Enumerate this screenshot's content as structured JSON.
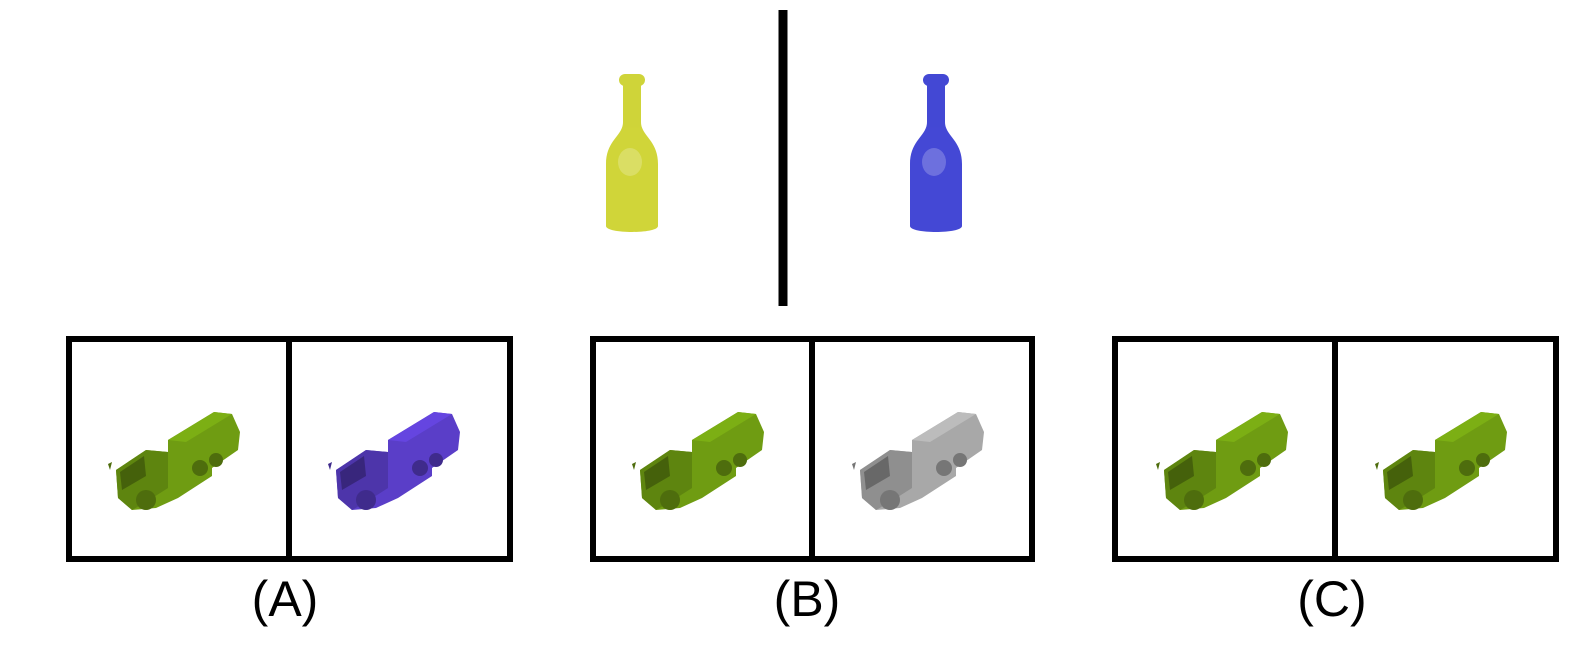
{
  "prompt": {
    "left_item": {
      "object": "bottle",
      "color": "#c9cf1e"
    },
    "right_item": {
      "object": "bottle",
      "color": "#2a2fcf"
    }
  },
  "options": [
    {
      "label": "(A)",
      "left": {
        "object": "garbage-truck",
        "color": "#6f9c12"
      },
      "right": {
        "object": "garbage-truck",
        "color": "#5a3ec8"
      }
    },
    {
      "label": "(B)",
      "left": {
        "object": "garbage-truck",
        "color": "#6f9c12"
      },
      "right": {
        "object": "garbage-truck",
        "color": "#a8a8a8"
      }
    },
    {
      "label": "(C)",
      "left": {
        "object": "garbage-truck",
        "color": "#6f9c12"
      },
      "right": {
        "object": "garbage-truck",
        "color": "#6f9c12"
      }
    }
  ]
}
